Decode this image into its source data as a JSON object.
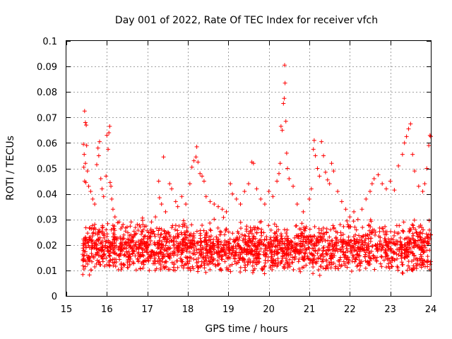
{
  "chart_data": {
    "type": "scatter",
    "title": "Day 001 of 2022, Rate Of TEC Index for receiver vfch",
    "xlabel": "GPS time / hours",
    "ylabel": "ROTI / TECUs",
    "xlim": [
      15,
      24
    ],
    "ylim": [
      0,
      0.1
    ],
    "x_ticks": [
      {
        "value": 15,
        "label": "15"
      },
      {
        "value": 16,
        "label": "16"
      },
      {
        "value": 17,
        "label": "17"
      },
      {
        "value": 18,
        "label": "18"
      },
      {
        "value": 19,
        "label": "19"
      },
      {
        "value": 20,
        "label": "20"
      },
      {
        "value": 21,
        "label": "21"
      },
      {
        "value": 22,
        "label": "22"
      },
      {
        "value": 23,
        "label": "23"
      },
      {
        "value": 24,
        "label": "24"
      }
    ],
    "y_ticks": [
      {
        "value": 0,
        "label": "0"
      },
      {
        "value": 0.01,
        "label": "0.01"
      },
      {
        "value": 0.02,
        "label": "0.02"
      },
      {
        "value": 0.03,
        "label": "0.03"
      },
      {
        "value": 0.04,
        "label": "0.04"
      },
      {
        "value": 0.05,
        "label": "0.05"
      },
      {
        "value": 0.06,
        "label": "0.06"
      },
      {
        "value": 0.07,
        "label": "0.07"
      },
      {
        "value": 0.08,
        "label": "0.08"
      },
      {
        "value": 0.09,
        "label": "0.09"
      },
      {
        "value": 0.1,
        "label": "0.1"
      }
    ],
    "grid": true,
    "marker": "plus",
    "series": [
      {
        "name": "ROTI",
        "color": "#ff0000",
        "points": [
          [
            15.45,
            0.0725
          ],
          [
            15.47,
            0.068
          ],
          [
            15.49,
            0.067
          ],
          [
            15.42,
            0.0595
          ],
          [
            15.5,
            0.059
          ],
          [
            15.44,
            0.0555
          ],
          [
            15.47,
            0.052
          ],
          [
            15.43,
            0.0505
          ],
          [
            15.52,
            0.049
          ],
          [
            15.45,
            0.045
          ],
          [
            15.48,
            0.0445
          ],
          [
            15.55,
            0.043
          ],
          [
            15.6,
            0.041
          ],
          [
            15.65,
            0.038
          ],
          [
            15.7,
            0.036
          ],
          [
            15.75,
            0.0515
          ],
          [
            15.78,
            0.058
          ],
          [
            15.82,
            0.0605
          ],
          [
            15.8,
            0.055
          ],
          [
            15.85,
            0.046
          ],
          [
            15.88,
            0.042
          ],
          [
            15.92,
            0.039
          ],
          [
            15.98,
            0.047
          ],
          [
            16.0,
            0.063
          ],
          [
            16.05,
            0.064
          ],
          [
            16.07,
            0.0665
          ],
          [
            16.03,
            0.0575
          ],
          [
            16.08,
            0.0445
          ],
          [
            16.1,
            0.043
          ],
          [
            16.12,
            0.038
          ],
          [
            16.15,
            0.034
          ],
          [
            16.2,
            0.031
          ],
          [
            16.3,
            0.029
          ],
          [
            16.4,
            0.028
          ],
          [
            16.5,
            0.027
          ],
          [
            16.6,
            0.029
          ],
          [
            16.75,
            0.028
          ],
          [
            16.9,
            0.026
          ],
          [
            17.1,
            0.029
          ],
          [
            17.2,
            0.031
          ],
          [
            17.28,
            0.045
          ],
          [
            17.3,
            0.0385
          ],
          [
            17.35,
            0.036
          ],
          [
            17.4,
            0.0545
          ],
          [
            17.45,
            0.033
          ],
          [
            17.55,
            0.044
          ],
          [
            17.6,
            0.042
          ],
          [
            17.7,
            0.037
          ],
          [
            17.75,
            0.035
          ],
          [
            17.85,
            0.039
          ],
          [
            17.95,
            0.036
          ],
          [
            18.05,
            0.044
          ],
          [
            18.1,
            0.0505
          ],
          [
            18.15,
            0.053
          ],
          [
            18.2,
            0.0545
          ],
          [
            18.22,
            0.0585
          ],
          [
            18.25,
            0.0525
          ],
          [
            18.3,
            0.048
          ],
          [
            18.35,
            0.047
          ],
          [
            18.4,
            0.045
          ],
          [
            18.45,
            0.039
          ],
          [
            18.55,
            0.037
          ],
          [
            18.65,
            0.036
          ],
          [
            18.75,
            0.035
          ],
          [
            18.85,
            0.034
          ],
          [
            18.95,
            0.033
          ],
          [
            19.05,
            0.044
          ],
          [
            19.1,
            0.04
          ],
          [
            19.2,
            0.038
          ],
          [
            19.3,
            0.036
          ],
          [
            19.4,
            0.041
          ],
          [
            19.5,
            0.044
          ],
          [
            19.58,
            0.0525
          ],
          [
            19.62,
            0.052
          ],
          [
            19.7,
            0.042
          ],
          [
            19.8,
            0.038
          ],
          [
            19.9,
            0.036
          ],
          [
            20.0,
            0.041
          ],
          [
            20.1,
            0.039
          ],
          [
            20.2,
            0.045
          ],
          [
            20.25,
            0.048
          ],
          [
            20.28,
            0.052
          ],
          [
            20.3,
            0.0665
          ],
          [
            20.33,
            0.065
          ],
          [
            20.36,
            0.0755
          ],
          [
            20.38,
            0.0775
          ],
          [
            20.4,
            0.0835
          ],
          [
            20.39,
            0.0905
          ],
          [
            20.42,
            0.0685
          ],
          [
            20.44,
            0.056
          ],
          [
            20.46,
            0.05
          ],
          [
            20.5,
            0.046
          ],
          [
            20.6,
            0.043
          ],
          [
            20.7,
            0.036
          ],
          [
            20.85,
            0.033
          ],
          [
            21.0,
            0.038
          ],
          [
            21.05,
            0.042
          ],
          [
            21.1,
            0.0575
          ],
          [
            21.12,
            0.061
          ],
          [
            21.15,
            0.055
          ],
          [
            21.2,
            0.05
          ],
          [
            21.25,
            0.047
          ],
          [
            21.3,
            0.0605
          ],
          [
            21.35,
            0.055
          ],
          [
            21.4,
            0.0485
          ],
          [
            21.45,
            0.0455
          ],
          [
            21.5,
            0.044
          ],
          [
            21.55,
            0.052
          ],
          [
            21.6,
            0.049
          ],
          [
            21.7,
            0.041
          ],
          [
            21.8,
            0.037
          ],
          [
            21.9,
            0.034
          ],
          [
            22.0,
            0.031
          ],
          [
            22.1,
            0.033
          ],
          [
            22.2,
            0.03
          ],
          [
            22.3,
            0.034
          ],
          [
            22.4,
            0.038
          ],
          [
            22.5,
            0.041
          ],
          [
            22.55,
            0.044
          ],
          [
            22.6,
            0.046
          ],
          [
            22.7,
            0.0475
          ],
          [
            22.8,
            0.044
          ],
          [
            22.9,
            0.042
          ],
          [
            23.0,
            0.045
          ],
          [
            23.1,
            0.0415
          ],
          [
            23.2,
            0.051
          ],
          [
            23.3,
            0.0555
          ],
          [
            23.35,
            0.06
          ],
          [
            23.4,
            0.0625
          ],
          [
            23.45,
            0.0655
          ],
          [
            23.5,
            0.0675
          ],
          [
            23.55,
            0.0555
          ],
          [
            23.6,
            0.049
          ],
          [
            23.7,
            0.043
          ],
          [
            23.8,
            0.041
          ],
          [
            23.85,
            0.044
          ],
          [
            23.9,
            0.05
          ],
          [
            23.95,
            0.059
          ],
          [
            23.98,
            0.063
          ],
          [
            24.0,
            0.0625
          ]
        ],
        "baseline": {
          "x_start": 15.4,
          "x_end": 24.0,
          "count": 2200,
          "typical_low": 0.007,
          "typical_high": 0.03,
          "center": 0.016
        }
      }
    ]
  }
}
